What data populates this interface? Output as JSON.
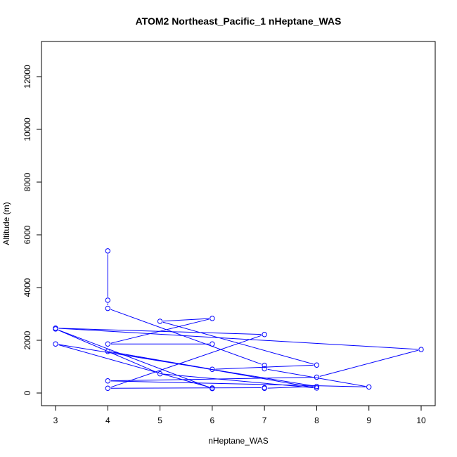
{
  "chart_data": {
    "type": "line",
    "title": "ATOM2 Northeast_Pacific_1 nHeptane_WAS",
    "xlabel": "nHeptane_WAS",
    "ylabel": "Altitude (m)",
    "xlim": [
      3,
      10
    ],
    "ylim": [
      0,
      12000
    ],
    "x_ticks": [
      3,
      4,
      5,
      6,
      7,
      8,
      9,
      10
    ],
    "y_ticks": [
      0,
      2000,
      4000,
      6000,
      8000,
      10000,
      12000
    ],
    "grid": false,
    "legend": "none",
    "marker": "open-circle",
    "series": [
      {
        "color": "#0000ff",
        "points": [
          {
            "x": 4,
            "y": 5390
          },
          {
            "x": 4,
            "y": 3520
          },
          {
            "x": 4,
            "y": 3210
          },
          {
            "x": 7,
            "y": 1050
          },
          {
            "x": 7,
            "y": 920
          },
          {
            "x": 9,
            "y": 230
          },
          {
            "x": 4,
            "y": 460
          },
          {
            "x": 8,
            "y": 600
          },
          {
            "x": 10,
            "y": 1650
          },
          {
            "x": 3,
            "y": 2460
          },
          {
            "x": 7,
            "y": 2220
          },
          {
            "x": 4,
            "y": 180
          },
          {
            "x": 7,
            "y": 200
          },
          {
            "x": 7,
            "y": 180
          },
          {
            "x": 8,
            "y": 250
          },
          {
            "x": 3,
            "y": 1860
          },
          {
            "x": 6,
            "y": 190
          },
          {
            "x": 6,
            "y": 170
          },
          {
            "x": 3,
            "y": 2430
          },
          {
            "x": 5,
            "y": 730
          },
          {
            "x": 8,
            "y": 190
          },
          {
            "x": 4,
            "y": 1580
          },
          {
            "x": 6,
            "y": 900
          },
          {
            "x": 8,
            "y": 1060
          },
          {
            "x": 5,
            "y": 2720
          },
          {
            "x": 6,
            "y": 2830
          },
          {
            "x": 4,
            "y": 1860
          },
          {
            "x": 6,
            "y": 1860
          }
        ]
      }
    ]
  }
}
